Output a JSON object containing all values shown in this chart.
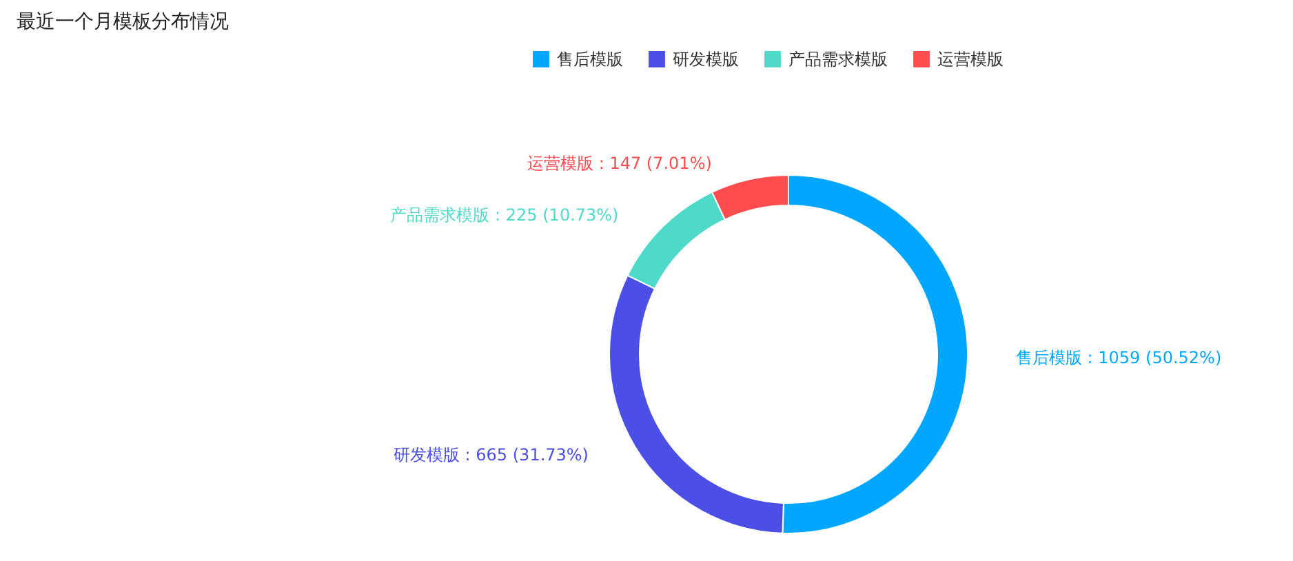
{
  "chart_data": {
    "type": "donut",
    "title": "最近一个月模板分布情况",
    "categories": [
      "售后模版",
      "研发模版",
      "产品需求模版",
      "运营模版"
    ],
    "values": [
      1059,
      665,
      225,
      147
    ],
    "colors": [
      "#00a6ff",
      "#4b4fe6",
      "#4fd9c8",
      "#ff4d4f"
    ],
    "value_labels": [
      ": 1059 (50.52%)",
      ": 665 (31.73%)",
      ": 225 (10.73%)",
      ": 147 (7.01%)"
    ],
    "legend": "top"
  }
}
